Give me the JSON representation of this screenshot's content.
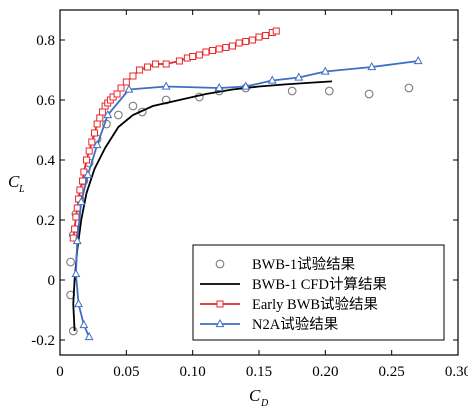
{
  "chart_data": {
    "type": "line",
    "xlabel": "C",
    "xlabel_sub": "D",
    "ylabel": "C",
    "ylabel_sub": "L",
    "xlim": [
      0,
      0.3
    ],
    "ylim": [
      -0.25,
      0.9
    ],
    "xticks": [
      0,
      0.05,
      0.1,
      0.15,
      0.2,
      0.25,
      0.3
    ],
    "xtick_labels": [
      "0",
      "0.05",
      "0.10",
      "0.15",
      "0.20",
      "0.25",
      "0.30"
    ],
    "yticks": [
      -0.2,
      0,
      0.2,
      0.4,
      0.6,
      0.8
    ],
    "ytick_labels": [
      "-0.2",
      "0",
      "0.2",
      "0.4",
      "0.6",
      "0.8"
    ],
    "legend_position": "bottom-right",
    "series": [
      {
        "name": "BWB-1试验结果",
        "style": "markers",
        "marker": "circle",
        "color": "#7f7f7f",
        "x": [
          0.01,
          0.008,
          0.008,
          0.01,
          0.012,
          0.015,
          0.018,
          0.022,
          0.028,
          0.035,
          0.044,
          0.055,
          0.062,
          0.08,
          0.105,
          0.12,
          0.14,
          0.175,
          0.203,
          0.233,
          0.263
        ],
        "y": [
          -0.17,
          -0.05,
          0.06,
          0.15,
          0.22,
          0.27,
          0.33,
          0.39,
          0.47,
          0.52,
          0.55,
          0.58,
          0.56,
          0.6,
          0.61,
          0.63,
          0.64,
          0.63,
          0.63,
          0.62,
          0.64
        ]
      },
      {
        "name": "BWB-1  CFD计算结果",
        "style": "line",
        "color": "#000000",
        "x": [
          0.011,
          0.01,
          0.011,
          0.013,
          0.016,
          0.02,
          0.026,
          0.034,
          0.044,
          0.055,
          0.07,
          0.09,
          0.11,
          0.13,
          0.15,
          0.17,
          0.19,
          0.205
        ],
        "y": [
          -0.17,
          -0.08,
          0.0,
          0.1,
          0.2,
          0.29,
          0.37,
          0.44,
          0.51,
          0.55,
          0.58,
          0.6,
          0.62,
          0.635,
          0.645,
          0.652,
          0.658,
          0.662
        ]
      },
      {
        "name": "Early  BWB试验结果",
        "style": "line-markers",
        "marker": "square",
        "color": "#e8262a",
        "x": [
          0.01,
          0.011,
          0.012,
          0.013,
          0.014,
          0.015,
          0.017,
          0.018,
          0.02,
          0.022,
          0.024,
          0.026,
          0.028,
          0.03,
          0.032,
          0.034,
          0.036,
          0.038,
          0.04,
          0.043,
          0.046,
          0.05,
          0.055,
          0.06,
          0.066,
          0.072,
          0.08,
          0.09,
          0.096,
          0.1,
          0.105,
          0.11,
          0.115,
          0.12,
          0.125,
          0.13,
          0.135,
          0.14,
          0.145,
          0.15,
          0.155,
          0.16,
          0.163
        ],
        "y": [
          0.14,
          0.17,
          0.21,
          0.24,
          0.27,
          0.3,
          0.33,
          0.36,
          0.4,
          0.43,
          0.46,
          0.49,
          0.52,
          0.54,
          0.56,
          0.58,
          0.59,
          0.6,
          0.61,
          0.62,
          0.64,
          0.66,
          0.68,
          0.7,
          0.71,
          0.72,
          0.72,
          0.73,
          0.74,
          0.745,
          0.75,
          0.76,
          0.765,
          0.77,
          0.775,
          0.78,
          0.79,
          0.795,
          0.8,
          0.81,
          0.815,
          0.825,
          0.83
        ]
      },
      {
        "name": "N2A试验结果",
        "style": "line-markers",
        "marker": "triangle",
        "color": "#3f6fc5",
        "x": [
          0.022,
          0.018,
          0.014,
          0.012,
          0.013,
          0.016,
          0.021,
          0.028,
          0.036,
          0.052,
          0.08,
          0.12,
          0.14,
          0.16,
          0.18,
          0.2,
          0.235,
          0.27
        ],
        "y": [
          -0.19,
          -0.15,
          -0.08,
          0.02,
          0.13,
          0.26,
          0.35,
          0.45,
          0.55,
          0.635,
          0.645,
          0.64,
          0.645,
          0.665,
          0.675,
          0.695,
          0.71,
          0.73
        ]
      }
    ]
  }
}
